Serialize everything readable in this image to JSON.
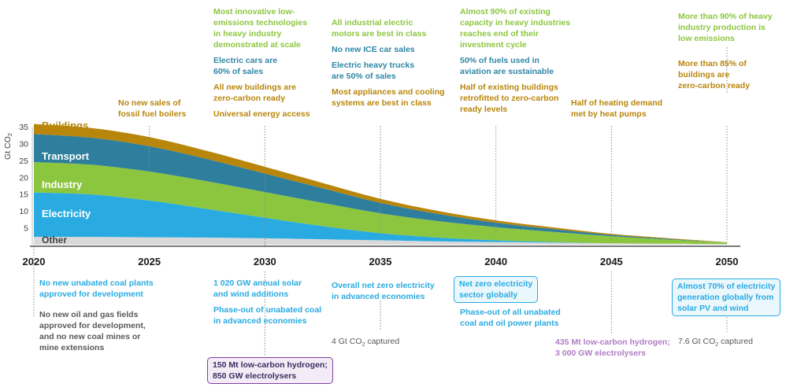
{
  "chart_data": {
    "type": "area",
    "ylabel": "Gt CO2",
    "ylim": [
      0,
      35
    ],
    "y_ticks": [
      "5",
      "10",
      "15",
      "20",
      "25",
      "30",
      "35"
    ],
    "x_ticks": [
      "2020",
      "2025",
      "2030",
      "2035",
      "2040",
      "2045",
      "2050"
    ],
    "x": [
      2020,
      2022.5,
      2025,
      2027.5,
      2030,
      2032.5,
      2035,
      2037.5,
      2040,
      2042.5,
      2045,
      2047.5,
      2050
    ],
    "series": [
      {
        "name": "Other",
        "color": "#d9d9d9",
        "values": [
          2.3,
          2.3,
          2.2,
          2.1,
          1.9,
          1.6,
          1.3,
          1.0,
          0.8,
          0.6,
          0.4,
          0.3,
          0.2
        ]
      },
      {
        "name": "Electricity",
        "color": "#29abe2",
        "values": [
          13.2,
          12.6,
          10.9,
          8.5,
          6.1,
          3.9,
          2.1,
          1.1,
          0.5,
          0.2,
          0.0,
          0.0,
          0.0
        ]
      },
      {
        "name": "Industry",
        "color": "#8cc63f",
        "values": [
          9.0,
          8.8,
          8.6,
          8.2,
          7.6,
          6.9,
          5.9,
          4.9,
          3.9,
          3.0,
          2.1,
          1.2,
          0.4
        ]
      },
      {
        "name": "Transport",
        "color": "#2e7e9e",
        "values": [
          8.3,
          8.0,
          7.5,
          6.6,
          5.5,
          4.3,
          3.1,
          2.1,
          1.3,
          0.8,
          0.4,
          0.2,
          0.0
        ]
      },
      {
        "name": "Buildings",
        "color": "#b8860b",
        "values": [
          3.0,
          2.9,
          2.7,
          2.4,
          2.0,
          1.6,
          1.2,
          0.9,
          0.7,
          0.5,
          0.3,
          0.2,
          0.1
        ]
      }
    ],
    "annotations_above": [
      {
        "year": "2025",
        "lines": [
          {
            "text": "No new sales of",
            "color": "gold"
          },
          {
            "text": "fossil fuel boilers",
            "color": "gold"
          }
        ]
      },
      {
        "year": "2030",
        "lines": [
          {
            "text": "Most innovative low-",
            "color": "green"
          },
          {
            "text": "emissions technologies",
            "color": "green"
          },
          {
            "text": "in heavy industry",
            "color": "green"
          },
          {
            "text": "demonstrated at scale",
            "color": "green"
          },
          {
            "text": "",
            "color": "green"
          },
          {
            "text": "Electric cars are",
            "color": "blue"
          },
          {
            "text": "60% of sales",
            "color": "blue"
          },
          {
            "text": "",
            "color": "blue"
          },
          {
            "text": "All new buildings are",
            "color": "gold"
          },
          {
            "text": "zero-carbon ready",
            "color": "gold"
          },
          {
            "text": "",
            "color": "gold"
          },
          {
            "text": "Universal energy access",
            "color": "gold"
          }
        ]
      },
      {
        "year": "2035",
        "lines": [
          {
            "text": "All industrial electric",
            "color": "green"
          },
          {
            "text": "motors are best in class",
            "color": "green"
          },
          {
            "text": "",
            "color": "green"
          },
          {
            "text": "No new ICE car sales",
            "color": "blue"
          },
          {
            "text": "",
            "color": "blue"
          },
          {
            "text": "Electric heavy trucks",
            "color": "blue"
          },
          {
            "text": "are 50% of sales",
            "color": "blue"
          },
          {
            "text": "",
            "color": "blue"
          },
          {
            "text": "Most appliances and cooling",
            "color": "gold"
          },
          {
            "text": "systems are best in class",
            "color": "gold"
          }
        ]
      },
      {
        "year": "2040",
        "lines": [
          {
            "text": "Almost 90% of existing",
            "color": "green"
          },
          {
            "text": "capacity in heavy industries",
            "color": "green"
          },
          {
            "text": "reaches end of their",
            "color": "green"
          },
          {
            "text": "investment cycle",
            "color": "green"
          },
          {
            "text": "",
            "color": "green"
          },
          {
            "text": "50% of fuels used in",
            "color": "blue"
          },
          {
            "text": "aviation are sustainable",
            "color": "blue"
          },
          {
            "text": "",
            "color": "blue"
          },
          {
            "text": "Half of existing buildings",
            "color": "gold"
          },
          {
            "text": "retrofitted to zero-carbon",
            "color": "gold"
          },
          {
            "text": "ready levels",
            "color": "gold"
          }
        ]
      },
      {
        "year": "2045",
        "lines": [
          {
            "text": "Half of heating demand",
            "color": "gold"
          },
          {
            "text": "met by heat pumps",
            "color": "gold"
          }
        ]
      },
      {
        "year": "2050",
        "lines": [
          {
            "text": "More than 90% of heavy",
            "color": "green"
          },
          {
            "text": "industry production is",
            "color": "green"
          },
          {
            "text": "low emissions",
            "color": "green"
          },
          {
            "text": "",
            "color": "green"
          },
          {
            "text": "",
            "color": "green"
          },
          {
            "text": "",
            "color": "green"
          },
          {
            "text": "More than 85% of",
            "color": "gold"
          },
          {
            "text": "buildings are",
            "color": "gold"
          },
          {
            "text": "zero-carbon ready",
            "color": "gold"
          }
        ]
      }
    ],
    "annotations_below": [
      {
        "year": "2020",
        "lines": [
          {
            "text": "No new unabated coal plants",
            "color": "cyan"
          },
          {
            "text": "approved for development",
            "color": "cyan"
          },
          {
            "text": "",
            "color": "cyan"
          },
          {
            "text": "",
            "color": "cyan"
          },
          {
            "text": "No new oil and gas fields",
            "color": "grey"
          },
          {
            "text": "approved for development,",
            "color": "grey"
          },
          {
            "text": "and no new coal mines or",
            "color": "grey"
          },
          {
            "text": "mine extensions",
            "color": "grey"
          }
        ]
      },
      {
        "year": "2030",
        "lines": [
          {
            "text": "1 020 GW annual solar",
            "color": "cyan"
          },
          {
            "text": "and wind additions",
            "color": "cyan"
          },
          {
            "text": "",
            "color": "cyan"
          },
          {
            "text": "Phase-out of unabated coal",
            "color": "cyan"
          },
          {
            "text": "in advanced economies",
            "color": "cyan"
          }
        ],
        "box": {
          "lines": [
            "150 Mt low-carbon hydrogen;",
            "850 GW electrolysers"
          ],
          "color": "purple"
        }
      },
      {
        "year": "2035",
        "lines": [
          {
            "text": "Overall net zero electricity",
            "color": "cyan"
          },
          {
            "text": "in advanced economies",
            "color": "cyan"
          }
        ],
        "footnote": "4 Gt CO₂ captured"
      },
      {
        "year": "2040",
        "box_lines": [
          "Net zero electricity",
          "sector globally"
        ],
        "lines": [
          {
            "text": "Phase-out of all unabated",
            "color": "cyan"
          },
          {
            "text": "coal and oil power plants",
            "color": "cyan"
          }
        ]
      },
      {
        "year": "2045",
        "lines": [
          {
            "text": "435 Mt low-carbon hydrogen;",
            "color": "lav"
          },
          {
            "text": "3 000 GW electrolysers",
            "color": "lav"
          }
        ]
      },
      {
        "year": "2050",
        "box_lines": [
          "Almost 70% of electricity",
          "generation globally from",
          "solar PV and wind"
        ],
        "footnote": "7.6 Gt CO₂ captured"
      }
    ]
  }
}
